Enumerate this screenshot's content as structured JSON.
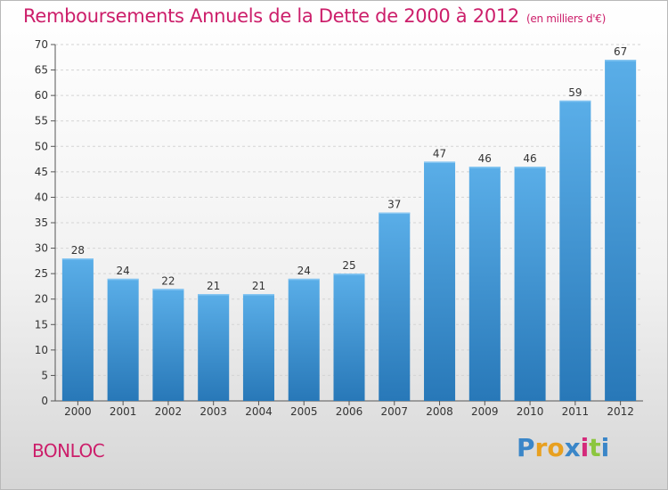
{
  "header": {
    "title": "Remboursements Annuels de la Dette de 2000 à 2012",
    "subtitle": "(en milliers d'€)"
  },
  "footer": {
    "commune": "BONLOC",
    "brand_letters": [
      "P",
      "r",
      "o",
      "x",
      "i",
      "t",
      "i"
    ],
    "brand_colors": [
      "#3a86c8",
      "#e8a020",
      "#e8a020",
      "#3a86c8",
      "#d42a7a",
      "#8cc63f",
      "#3a86c8"
    ]
  },
  "chart_data": {
    "type": "bar",
    "categories": [
      "2000",
      "2001",
      "2002",
      "2003",
      "2004",
      "2005",
      "2006",
      "2007",
      "2008",
      "2009",
      "2010",
      "2011",
      "2012"
    ],
    "values": [
      28,
      24,
      22,
      21,
      21,
      24,
      25,
      37,
      47,
      46,
      46,
      59,
      67
    ],
    "title": "Remboursements Annuels de la Dette de 2000 à 2012",
    "subtitle": "(en milliers d'€)",
    "ylim": [
      0,
      70
    ],
    "yticks": [
      0,
      5,
      10,
      15,
      20,
      25,
      30,
      35,
      40,
      45,
      50,
      55,
      60,
      65,
      70
    ],
    "grid": true,
    "bar_color_top": "#5aaee8",
    "bar_color_bottom": "#2878b8"
  }
}
